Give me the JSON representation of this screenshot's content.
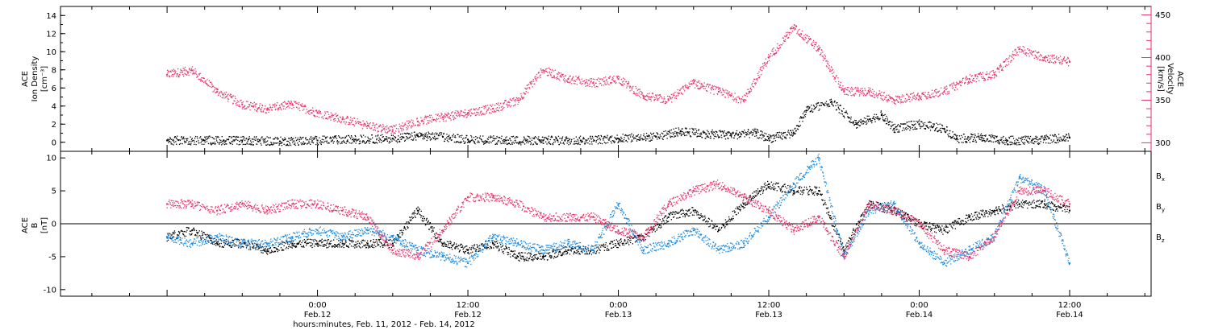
{
  "colors": {
    "black": "#000000",
    "pink": "#e8336a",
    "blue": "#1a8ae0"
  },
  "chart_data": [
    {
      "type": "scatter",
      "panel": "top",
      "left_axis": {
        "title": [
          "ACE",
          "Ion Density",
          "[cm⁻³]"
        ],
        "ylim": [
          -1,
          15
        ],
        "ticks": [
          0,
          2,
          4,
          6,
          8,
          10,
          12,
          14
        ]
      },
      "right_axis": {
        "title": [
          "ACE",
          "Velocity",
          "[km/s]"
        ],
        "ylim": [
          290,
          460
        ],
        "ticks": [
          300,
          350,
          400,
          450
        ]
      },
      "series": [
        {
          "name": "Ion Density",
          "axis": "left",
          "color": "#000000",
          "x": [
            -12,
            -9,
            -6,
            -3,
            0,
            3,
            6,
            8,
            10,
            12,
            15,
            18,
            21,
            24,
            27,
            29,
            31,
            33,
            35,
            36,
            38,
            39,
            41,
            43,
            45,
            46,
            48,
            50,
            51,
            53,
            55,
            57,
            58,
            60
          ],
          "y": [
            0.2,
            0.2,
            0.2,
            0.1,
            0.2,
            0.3,
            0.4,
            0.7,
            0.6,
            0.3,
            0.2,
            0.2,
            0.2,
            0.4,
            0.6,
            1.2,
            0.9,
            0.8,
            1.0,
            0.4,
            1.0,
            3.5,
            4.5,
            2.0,
            3.0,
            1.5,
            2.0,
            1.5,
            0.4,
            0.5,
            0.2,
            0.2,
            0.3,
            0.5
          ]
        },
        {
          "name": "Velocity",
          "axis": "right",
          "color": "#e8336a",
          "x": [
            -12,
            -10,
            -8,
            -6,
            -4,
            -2,
            0,
            2,
            4,
            6,
            8,
            10,
            12,
            14,
            16,
            18,
            20,
            22,
            24,
            26,
            28,
            30,
            32,
            34,
            36,
            38,
            40,
            42,
            44,
            46,
            48,
            50,
            52,
            54,
            56,
            58,
            60
          ],
          "y": [
            380,
            385,
            360,
            345,
            340,
            345,
            335,
            328,
            320,
            315,
            325,
            330,
            335,
            340,
            350,
            385,
            375,
            370,
            375,
            355,
            350,
            370,
            360,
            350,
            400,
            435,
            410,
            360,
            360,
            350,
            355,
            360,
            375,
            380,
            410,
            400,
            395
          ]
        }
      ]
    },
    {
      "type": "scatter",
      "panel": "bottom",
      "left_axis": {
        "title": [
          "ACE",
          "B",
          "[nT]"
        ],
        "ylim": [
          -11,
          11
        ],
        "ticks": [
          -10,
          -5,
          0,
          5,
          10
        ]
      },
      "legend_labels": [
        "Bx",
        "By",
        "Bz"
      ],
      "xaxis": {
        "title": "hours:minutes, Feb. 11, 2012 - Feb. 14, 2012",
        "xlim": [
          -20.5,
          66.5
        ],
        "ticks": [
          {
            "x": 0,
            "time": "0:00",
            "date": "Feb.12"
          },
          {
            "x": 12,
            "time": "12:00",
            "date": "Feb.12"
          },
          {
            "x": 24,
            "time": "0:00",
            "date": "Feb.13"
          },
          {
            "x": 36,
            "time": "12:00",
            "date": "Feb.13"
          },
          {
            "x": 48,
            "time": "0:00",
            "date": "Feb.14"
          },
          {
            "x": 60,
            "time": "12:00",
            "date": "Feb.14"
          }
        ]
      },
      "series": [
        {
          "name": "Bx",
          "color": "#000000",
          "x": [
            -12,
            -10,
            -8,
            -6,
            -4,
            -2,
            0,
            2,
            4,
            6,
            8,
            10,
            12,
            14,
            16,
            18,
            20,
            22,
            24,
            26,
            28,
            30,
            32,
            34,
            36,
            38,
            40,
            42,
            44,
            46,
            48,
            50,
            52,
            54,
            56,
            58,
            60
          ],
          "y": [
            -2,
            -1,
            -3,
            -3,
            -4,
            -3,
            -3,
            -3,
            -3,
            -3,
            2,
            -3,
            -4,
            -3,
            -5,
            -5,
            -4,
            -4,
            -3,
            -2,
            1,
            2,
            -1,
            3,
            6,
            5,
            5,
            -4,
            3,
            2,
            0,
            -1,
            1,
            2,
            3,
            3,
            2
          ]
        },
        {
          "name": "By",
          "color": "#1a8ae0",
          "x": [
            -12,
            -10,
            -8,
            -6,
            -4,
            -2,
            0,
            2,
            4,
            6,
            8,
            10,
            12,
            14,
            16,
            18,
            20,
            22,
            24,
            26,
            28,
            30,
            32,
            34,
            36,
            38,
            40,
            42,
            44,
            46,
            48,
            50,
            52,
            54,
            56,
            58,
            60
          ],
          "y": [
            -2,
            -3,
            -2,
            -3,
            -3,
            -2,
            -1,
            -2,
            -1,
            -2,
            -4,
            -5,
            -6,
            -2,
            -3,
            -4,
            -3,
            -4,
            3,
            -4,
            -3,
            -1,
            -4,
            -3,
            1,
            6,
            10,
            -5,
            2,
            3,
            -3,
            -6,
            -4,
            -2,
            7,
            5,
            -6
          ]
        },
        {
          "name": "Bz",
          "color": "#e8336a",
          "x": [
            -12,
            -10,
            -8,
            -6,
            -4,
            -2,
            0,
            2,
            4,
            6,
            8,
            10,
            12,
            14,
            16,
            18,
            20,
            22,
            24,
            26,
            28,
            30,
            32,
            34,
            36,
            38,
            40,
            42,
            44,
            46,
            48,
            50,
            52,
            54,
            56,
            58,
            60
          ],
          "y": [
            3,
            3,
            2,
            3,
            2,
            3,
            3,
            2,
            1,
            -4,
            -5,
            -1,
            4,
            4,
            3,
            1,
            1,
            1,
            -1,
            -2,
            3,
            5,
            6,
            4,
            2,
            -1,
            1,
            -5,
            3,
            2,
            0,
            -4,
            -5,
            -2,
            5,
            5,
            3
          ]
        }
      ]
    }
  ]
}
